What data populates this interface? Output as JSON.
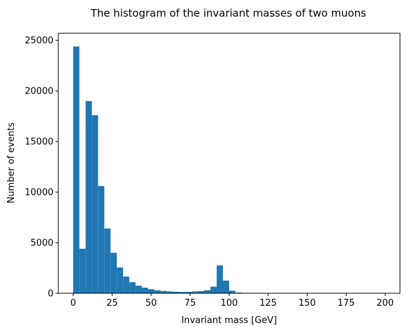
{
  "chart_data": {
    "type": "bar",
    "title": "The histogram of the invariant masses of two muons",
    "xlabel": "Invariant mass [GeV]",
    "ylabel": "Number of events",
    "xlim": [
      -9.5,
      209.5
    ],
    "ylim": [
      0,
      25700
    ],
    "bin_width": 4,
    "bin_start": 0,
    "color": "#1f77b4",
    "grid": false,
    "values": [
      24400,
      4400,
      19000,
      17600,
      10600,
      6400,
      4000,
      2550,
      1650,
      1100,
      750,
      550,
      400,
      300,
      230,
      180,
      150,
      130,
      140,
      180,
      210,
      300,
      650,
      2750,
      1250,
      250,
      70,
      40,
      25,
      15,
      10,
      8,
      5,
      4,
      3,
      2,
      2,
      1,
      1,
      1,
      1,
      1,
      1,
      1,
      0,
      0,
      0,
      0,
      0,
      0
    ],
    "x_ticks": [
      {
        "value": 0,
        "label": "0"
      },
      {
        "value": 25,
        "label": "25"
      },
      {
        "value": 50,
        "label": "50"
      },
      {
        "value": 75,
        "label": "75"
      },
      {
        "value": 100,
        "label": "100"
      },
      {
        "value": 125,
        "label": "125"
      },
      {
        "value": 150,
        "label": "150"
      },
      {
        "value": 175,
        "label": "175"
      },
      {
        "value": 200,
        "label": "200"
      }
    ],
    "y_ticks": [
      {
        "value": 0,
        "label": "0"
      },
      {
        "value": 5000,
        "label": "5000"
      },
      {
        "value": 10000,
        "label": "10000"
      },
      {
        "value": 15000,
        "label": "15000"
      },
      {
        "value": 20000,
        "label": "20000"
      },
      {
        "value": 25000,
        "label": "25000"
      }
    ]
  }
}
